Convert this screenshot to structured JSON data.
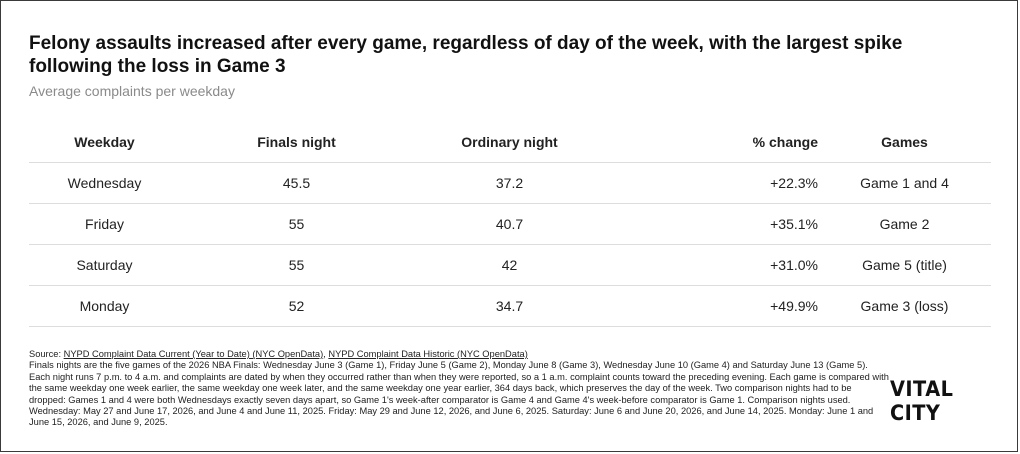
{
  "chart_data": {
    "type": "table",
    "title": "Felony assaults increased after every game, regardless of day of the week, with the largest spike following the loss in Game 3",
    "subtitle": "Average complaints per weekday",
    "columns": [
      "Weekday",
      "Finals night",
      "Ordinary night",
      "% change",
      "Games"
    ],
    "rows": [
      [
        "Wednesday",
        "45.5",
        "37.2",
        "+22.3%",
        "Game 1 and 4"
      ],
      [
        "Friday",
        "55",
        "40.7",
        "+35.1%",
        "Game 2"
      ],
      [
        "Saturday",
        "55",
        "42",
        "+31.0%",
        "Game 5 (title)"
      ],
      [
        "Monday",
        "52",
        "34.7",
        "+49.9%",
        "Game 3 (loss)"
      ]
    ]
  },
  "footer": {
    "source_prefix": "Source: ",
    "source_link_1": "NYPD Complaint Data Current (Year to Date) (NYC OpenData)",
    "source_separator": ", ",
    "source_link_2": "NYPD Complaint Data Historic (NYC OpenData)",
    "note": "Finals nights are the five games of the 2026 NBA Finals: Wednesday June 3 (Game 1), Friday June 5 (Game 2), Monday June 8 (Game 3), Wednesday June 10 (Game 4) and Saturday June 13 (Game 5). Each night runs 7 p.m. to 4 a.m. and complaints are dated by when they occurred rather than when they were reported, so a 1 a.m. complaint counts toward the preceding evening. Each game is compared with the same weekday one week earlier, the same weekday one week later, and the same weekday one year earlier, 364 days back, which preserves the day of the week. Two comparison nights had to be dropped: Games 1 and 4 were both Wednesdays exactly seven days apart, so Game 1's week-after comparator is Game 4 and Game 4's week-before comparator is Game 1. Comparison nights used. Wednesday: May 27 and June 17, 2026, and June 4 and June 11, 2025. Friday: May 29 and June 12, 2026, and June 6, 2025. Saturday: June 6 and June 20, 2026, and June 14, 2025. Monday: June 1 and June 15, 2026, and June 9, 2025."
  },
  "brand": "VITAL CITY"
}
